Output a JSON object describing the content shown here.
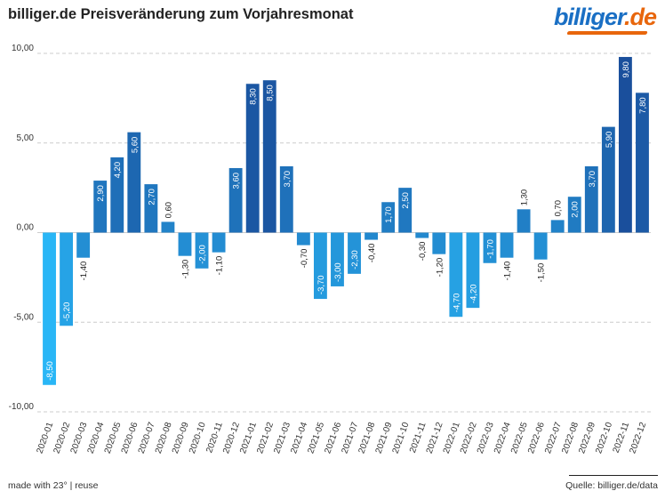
{
  "title": "billiger.de Preisveränderung zum Vorjahresmonat",
  "logo": {
    "prefix": "billiger",
    "dot": ".",
    "suffix": "de"
  },
  "footer": {
    "left": "made with 23° | reuse",
    "right": "Quelle: billiger.de/data"
  },
  "chart_data": {
    "type": "bar",
    "title": "billiger.de Preisveränderung zum Vorjahresmonat",
    "xlabel": "",
    "ylabel": "",
    "ylim": [
      -10,
      10
    ],
    "yticks": [
      "10,00",
      "5,00",
      "0,00",
      "-5,00",
      "-10,00"
    ],
    "ytick_values": [
      10,
      5,
      0,
      -5,
      -10
    ],
    "grid": true,
    "categories": [
      "2020-01",
      "2020-02",
      "2020-03",
      "2020-04",
      "2020-05",
      "2020-06",
      "2020-07",
      "2020-08",
      "2020-09",
      "2020-10",
      "2020-11",
      "2020-12",
      "2021-01",
      "2021-02",
      "2021-03",
      "2021-04",
      "2021-05",
      "2021-06",
      "2021-07",
      "2021-08",
      "2021-09",
      "2021-10",
      "2021-11",
      "2021-12",
      "2022-01",
      "2022-02",
      "2022-03",
      "2022-04",
      "2022-05",
      "2022-06",
      "2022-07",
      "2022-08",
      "2022-09",
      "2022-10",
      "2022-11",
      "2022-12"
    ],
    "values": [
      -8.5,
      -5.2,
      -1.4,
      2.9,
      4.2,
      5.6,
      2.7,
      0.6,
      -1.3,
      -2.0,
      -1.1,
      3.6,
      8.3,
      8.5,
      3.7,
      -0.7,
      -3.7,
      -3.0,
      -2.3,
      -0.4,
      1.7,
      2.5,
      -0.3,
      -1.2,
      -4.7,
      -4.2,
      -1.7,
      -1.4,
      1.3,
      -1.5,
      0.7,
      2.0,
      3.7,
      5.9,
      9.8,
      7.8
    ],
    "labels": [
      "-8,50",
      "-5,20",
      "-1,40",
      "2,90",
      "4,20",
      "5,60",
      "2,70",
      "0,60",
      "-1,30",
      "-2,00",
      "-1,10",
      "3,60",
      "8,30",
      "8,50",
      "3,70",
      "-0,70",
      "-3,70",
      "-3,00",
      "-2,30",
      "-0,40",
      "1,70",
      "2,50",
      "-0,30",
      "-1,20",
      "-4,70",
      "-4,20",
      "-1,70",
      "-1,40",
      "1,30",
      "-1,50",
      "0,70",
      "2,00",
      "3,70",
      "5,90",
      "9,80",
      "7,80"
    ],
    "colors": {
      "low": "#29b6f6",
      "high": "#1a4f9c",
      "grid": "#cccccc",
      "text": "#333333"
    }
  }
}
